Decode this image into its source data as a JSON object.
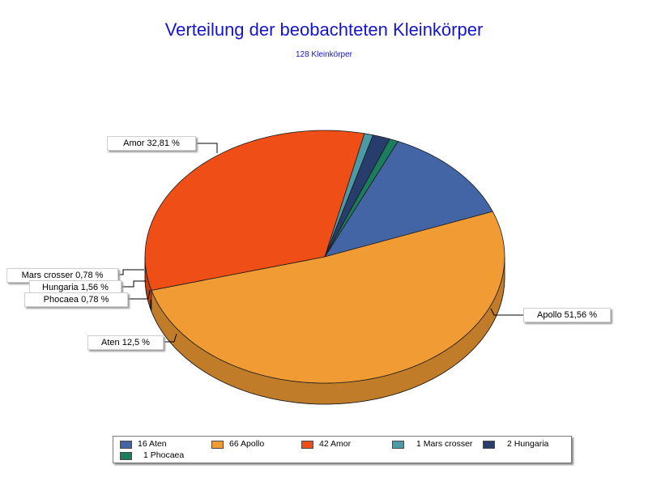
{
  "chart_data": {
    "type": "pie",
    "title": "Verteilung der beobachteten Kleinkörper",
    "subtitle": "128 Kleinkörper",
    "slices": [
      {
        "key": "aten",
        "count": 16,
        "legend": "16 Aten",
        "callout": "Aten 12,5 %",
        "percent": 12.5,
        "color": "#4465a5"
      },
      {
        "key": "apollo",
        "count": 66,
        "legend": "66 Apollo",
        "callout": "Apollo 51,56 %",
        "percent": 51.56,
        "color": "#f19b35"
      },
      {
        "key": "amor",
        "count": 42,
        "legend": "42 Amor",
        "callout": "Amor 32,81 %",
        "percent": 32.81,
        "color": "#ef4e16"
      },
      {
        "key": "mars-crosser",
        "count": 1,
        "legend": "1 Mars crosser",
        "callout": "Mars crosser 0,78 %",
        "percent": 0.78,
        "color": "#4a9aa8"
      },
      {
        "key": "hungaria",
        "count": 2,
        "legend": "2 Hungaria",
        "callout": "Hungaria 1,56 %",
        "percent": 1.56,
        "color": "#273d6c"
      },
      {
        "key": "phocaea",
        "count": 1,
        "legend": "1 Phocaea",
        "callout": "Phocaea 0,78 %",
        "percent": 0.78,
        "color": "#1a7d5c"
      }
    ],
    "legend_position": "bottom"
  }
}
